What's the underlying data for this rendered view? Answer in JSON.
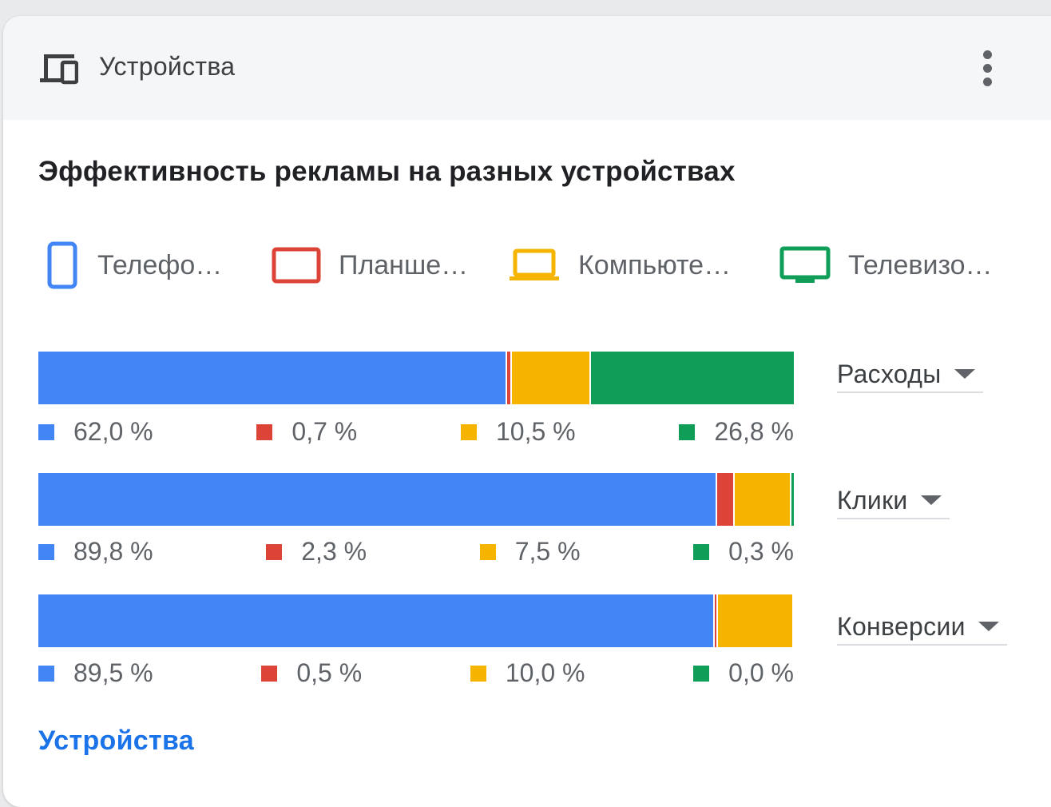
{
  "card": {
    "header_title": "Устройства",
    "header_icon": "devices-icon",
    "more_icon": "more-vert-icon",
    "footer_link": "Устройства"
  },
  "colors": {
    "phone": "#4285f4",
    "tablet": "#db4437",
    "computer": "#f4b400",
    "tv": "#0f9d58"
  },
  "chart_data": {
    "type": "bar",
    "stacked": true,
    "normalized": true,
    "orientation": "horizontal",
    "title": "Эффективность рекламы на разных устройствах",
    "legend_position": "top",
    "series": [
      {
        "name": "Телефо…",
        "key": "phone",
        "icon": "phone-icon"
      },
      {
        "name": "Планше…",
        "key": "tablet",
        "icon": "tablet-icon"
      },
      {
        "name": "Компьюте…",
        "key": "computer",
        "icon": "laptop-icon"
      },
      {
        "name": "Телевизо…",
        "key": "tv",
        "icon": "tv-icon"
      }
    ],
    "rows": [
      {
        "metric": "Расходы",
        "values": [
          62.0,
          0.7,
          10.5,
          26.8
        ],
        "labels": [
          "62,0 %",
          "0,7 %",
          "10,5 %",
          "26,8 %"
        ]
      },
      {
        "metric": "Клики",
        "values": [
          89.8,
          2.3,
          7.5,
          0.3
        ],
        "labels": [
          "89,8 %",
          "2,3 %",
          "7,5 %",
          "0,3 %"
        ]
      },
      {
        "metric": "Конверсии",
        "values": [
          89.5,
          0.5,
          10.0,
          0.0
        ],
        "labels": [
          "89,5 %",
          "0,5 %",
          "10,0 %",
          "0,0 %"
        ]
      }
    ]
  }
}
